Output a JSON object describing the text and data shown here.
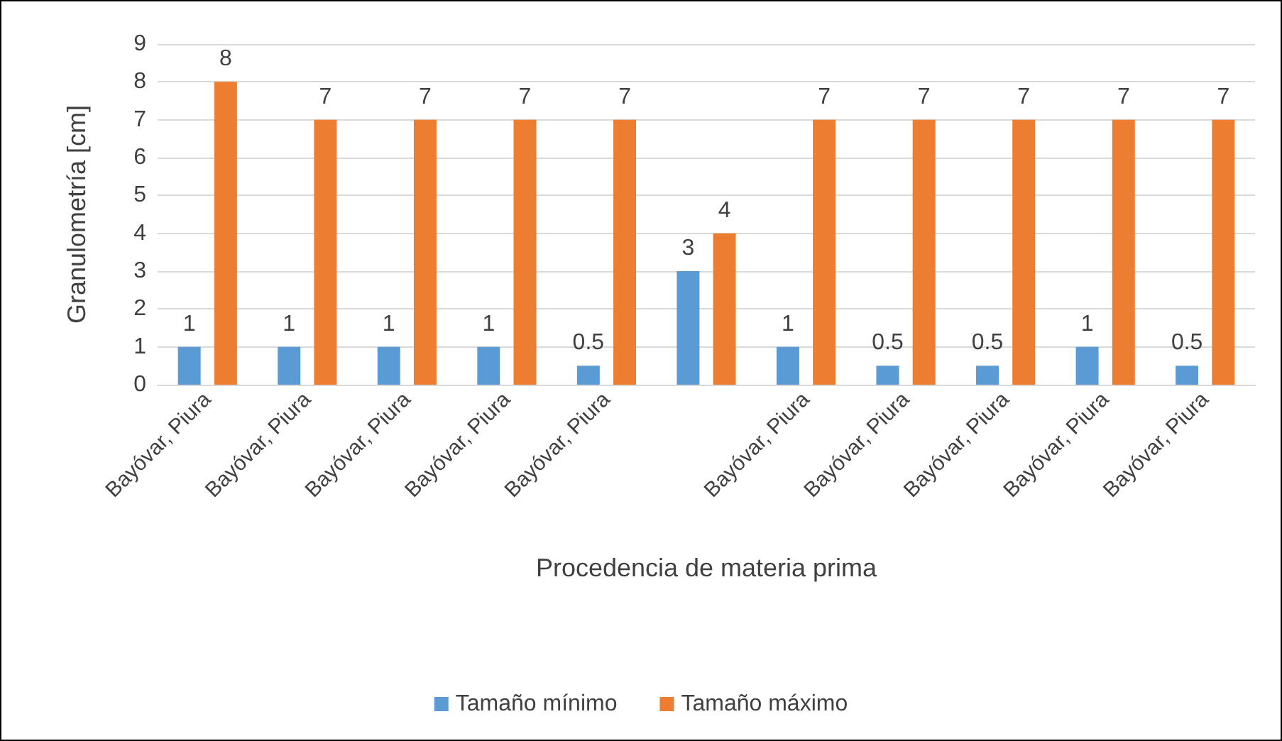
{
  "chart_data": {
    "type": "bar",
    "xlabel": "Procedencia de materia prima",
    "ylabel": "Granulometría [cm]",
    "categories": [
      "Bayóvar, Piura",
      "Bayóvar, Piura",
      "Bayóvar, Piura",
      "Bayóvar, Piura",
      "Bayóvar, Piura",
      null,
      "Bayóvar, Piura",
      "Bayóvar, Piura",
      "Bayóvar, Piura",
      "Bayóvar, Piura",
      "Bayóvar, Piura"
    ],
    "series": [
      {
        "name": "Tamaño mínimo",
        "color": "#5b9bd5",
        "values": [
          1,
          1,
          1,
          1,
          0.5,
          3,
          1,
          0.5,
          0.5,
          1,
          0.5
        ]
      },
      {
        "name": "Tamaño máximo",
        "color": "#ed7d31",
        "values": [
          8,
          7,
          7,
          7,
          7,
          4,
          7,
          7,
          7,
          7,
          7
        ]
      }
    ],
    "ylim": [
      0,
      9
    ],
    "yticks": [
      0,
      1,
      2,
      3,
      4,
      5,
      6,
      7,
      8,
      9
    ],
    "grid": "y",
    "legend": "bottom",
    "data_labels": true
  }
}
